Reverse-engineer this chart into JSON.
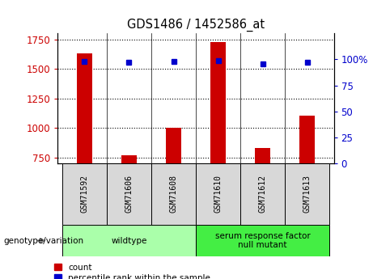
{
  "title": "GDS1486 / 1452586_at",
  "samples": [
    "GSM71592",
    "GSM71606",
    "GSM71608",
    "GSM71610",
    "GSM71612",
    "GSM71613"
  ],
  "counts": [
    1630,
    770,
    1000,
    1730,
    830,
    1100
  ],
  "percentile_ranks": [
    98,
    97,
    98,
    99,
    96,
    97
  ],
  "groups": [
    {
      "label": "wildtype",
      "samples": [
        0,
        1,
        2
      ],
      "color": "#aaffaa"
    },
    {
      "label": "serum response factor\nnull mutant",
      "samples": [
        3,
        4,
        5
      ],
      "color": "#44ee44"
    }
  ],
  "ylim_left": [
    700,
    1800
  ],
  "ylim_right": [
    0,
    125
  ],
  "yticks_left": [
    750,
    1000,
    1250,
    1500,
    1750
  ],
  "yticks_right": [
    0,
    25,
    50,
    75,
    100
  ],
  "bar_color": "#cc0000",
  "dot_color": "#0000cc",
  "grid_color": "black",
  "sample_box_color": "#d8d8d8",
  "legend_count_label": "count",
  "legend_pct_label": "percentile rank within the sample",
  "genotype_label": "genotype/variation",
  "bar_width": 0.35
}
